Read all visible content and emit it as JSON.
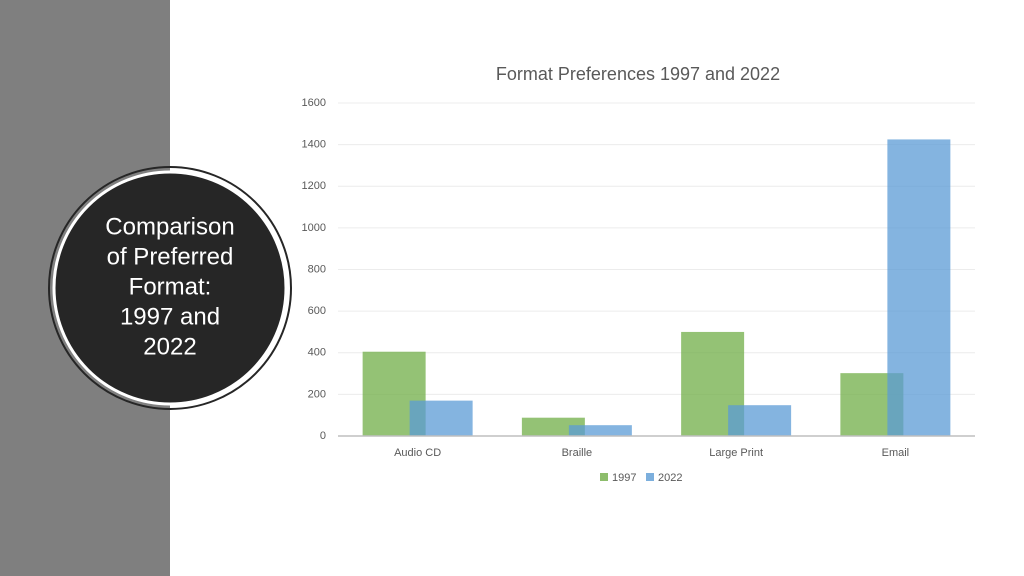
{
  "slide_title": [
    "Comparison",
    "of Preferred",
    "Format:",
    "1997 and",
    "2022"
  ],
  "chart_data": {
    "type": "bar",
    "title": "Format Preferences 1997 and 2022",
    "categories": [
      "Audio CD",
      "Braille",
      "Large Print",
      "Email"
    ],
    "series": [
      {
        "name": "1997",
        "color": "#70ad47",
        "values": [
          405,
          88,
          500,
          302
        ]
      },
      {
        "name": "2022",
        "color": "#5b9bd5",
        "values": [
          170,
          52,
          148,
          1425
        ]
      }
    ],
    "ylim": [
      0,
      1600
    ],
    "yticks": [
      0,
      200,
      400,
      600,
      800,
      1000,
      1200,
      1400,
      1600
    ],
    "grid": true,
    "legend": "bottom"
  }
}
